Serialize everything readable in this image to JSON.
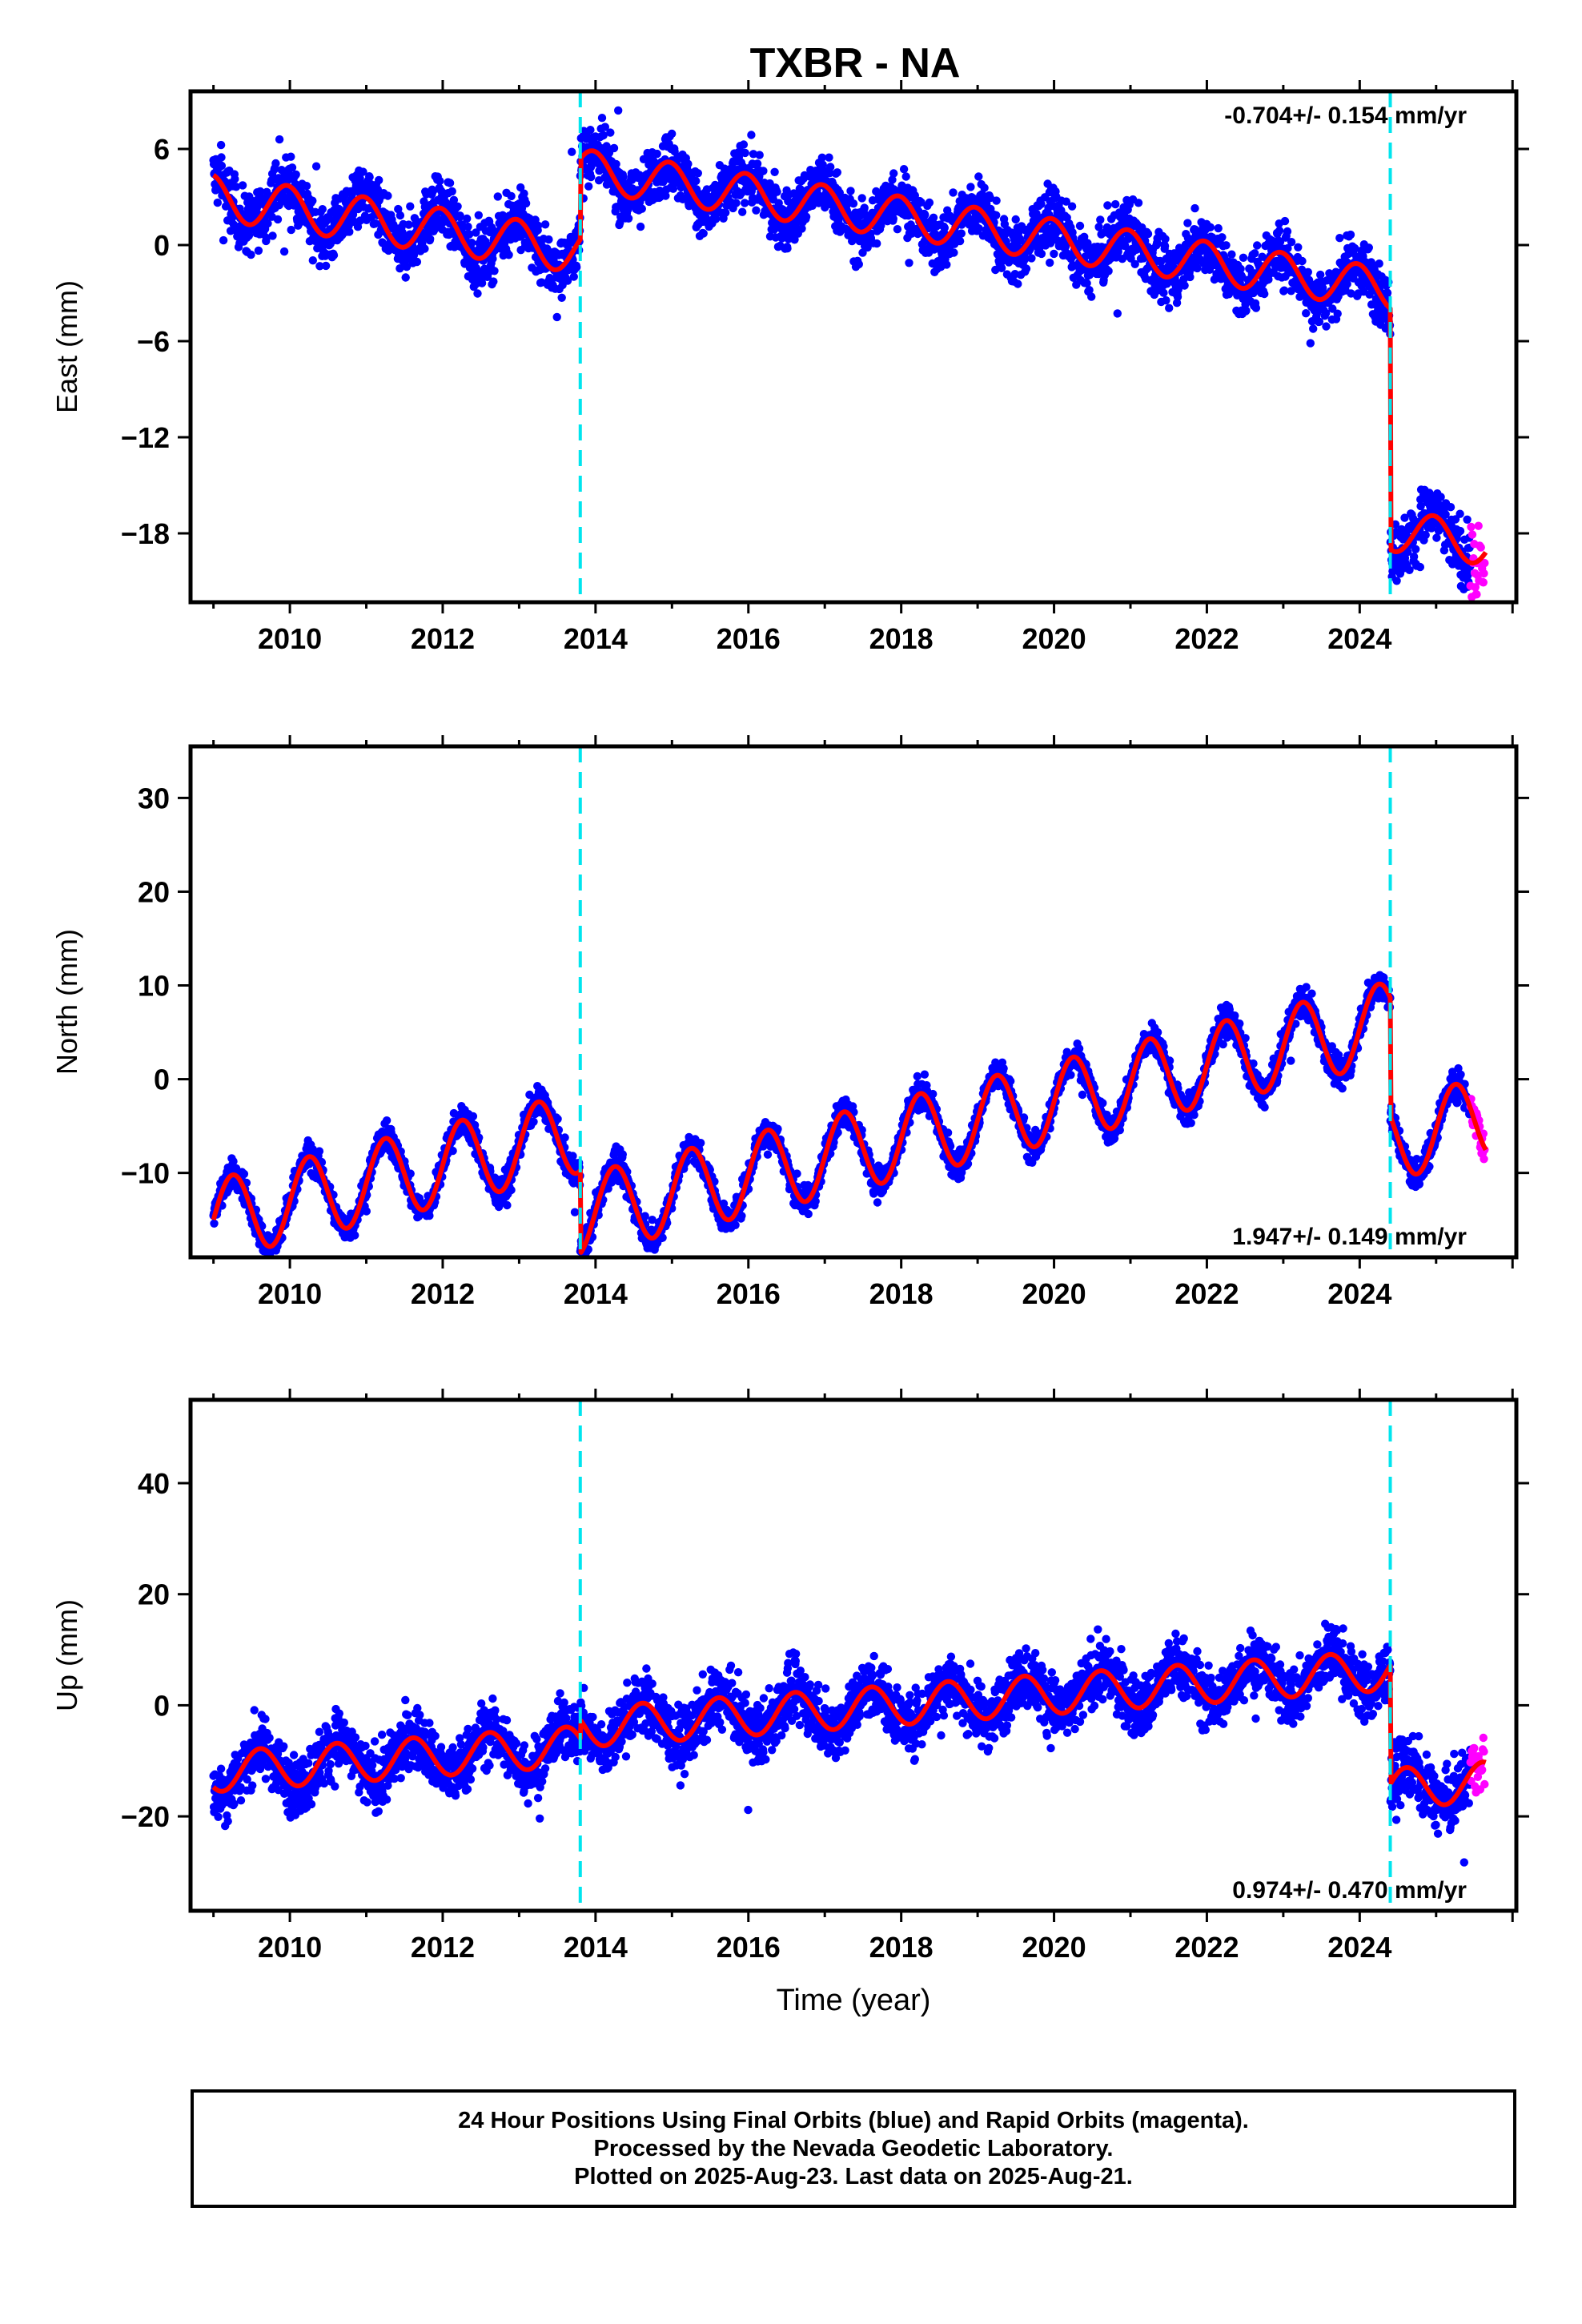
{
  "title": "TXBR - NA",
  "xlabel": "Time (year)",
  "footer": {
    "line1": "24 Hour Positions Using Final Orbits (blue) and Rapid Orbits (magenta).",
    "line2": "Processed by the Nevada Geodetic Laboratory.",
    "line3": "Plotted on 2025-Aug-23. Last data on 2025-Aug-21."
  },
  "colors": {
    "final": "#0000ff",
    "rapid": "#ff00ff",
    "model": "#ff0000",
    "event": "#00e5ee"
  },
  "chart_data": [
    {
      "type": "scatter",
      "panel": "east",
      "ylabel": "East (mm)",
      "rate_label": "-0.704+/- 0.154 mm/yr",
      "xlim": [
        2008.7,
        2026.05
      ],
      "ylim": [
        -22.3,
        9.6
      ],
      "xticks": [
        2010,
        2012,
        2014,
        2016,
        2018,
        2020,
        2022,
        2024
      ],
      "xtick_labels": [
        "2010",
        "2012",
        "2014",
        "2016",
        "2018",
        "2020",
        "2022",
        "2024"
      ],
      "yticks": [
        6,
        0,
        -6,
        -12,
        -18
      ],
      "ytick_labels": [
        "6",
        "0",
        "−6",
        "−12",
        "−18"
      ],
      "events": [
        2013.8,
        2024.4
      ],
      "model": {
        "segments": [
          {
            "start": 2009.0,
            "end": 2013.8,
            "offset": 3.0,
            "slope": -0.704,
            "amp": 1.4,
            "phase": 1.8
          },
          {
            "start": 2013.8,
            "end": 2024.4,
            "offset": 4.7,
            "slope": -0.704,
            "amp": 1.3,
            "phase": 1.8
          },
          {
            "start": 2024.4,
            "end": 2025.65,
            "offset": -17.8,
            "slope": -0.704,
            "amp": 1.3,
            "phase": 1.8
          }
        ]
      },
      "noise": 1.3,
      "rapid": {
        "start": 2025.45,
        "end": 2025.64,
        "spread": 4.5
      }
    },
    {
      "type": "scatter",
      "panel": "north",
      "ylabel": "North (mm)",
      "rate_label": "1.947+/- 0.149 mm/yr",
      "xlim": [
        2008.7,
        2026.05
      ],
      "ylim": [
        -19,
        35.5
      ],
      "xticks": [
        2010,
        2012,
        2014,
        2016,
        2018,
        2020,
        2022,
        2024
      ],
      "xtick_labels": [
        "2010",
        "2012",
        "2014",
        "2016",
        "2018",
        "2020",
        "2022",
        "2024"
      ],
      "yticks": [
        30,
        20,
        10,
        0,
        -10
      ],
      "ytick_labels": [
        "30",
        "20",
        "10",
        "0",
        "−10"
      ],
      "events": [
        2013.8,
        2024.4
      ],
      "model": {
        "segments": [
          {
            "start": 2009.0,
            "end": 2013.8,
            "offset": -15.0,
            "slope": 1.947,
            "amp": 4.3,
            "phase": 0.0
          },
          {
            "start": 2013.8,
            "end": 2024.4,
            "offset": -14.5,
            "slope": 1.947,
            "amp": 4.3,
            "phase": 0.0
          },
          {
            "start": 2024.4,
            "end": 2025.65,
            "offset": -6.5,
            "slope": 1.947,
            "amp": 4.3,
            "phase": 0.0
          }
        ]
      },
      "noise": 1.1,
      "rapid": {
        "start": 2025.45,
        "end": 2025.64,
        "spread": 3.0
      }
    },
    {
      "type": "scatter",
      "panel": "up",
      "ylabel": "Up (mm)",
      "rate_label": "0.974+/- 0.470 mm/yr",
      "xlim": [
        2008.7,
        2026.05
      ],
      "ylim": [
        -37,
        55
      ],
      "xticks": [
        2010,
        2012,
        2014,
        2016,
        2018,
        2020,
        2022,
        2024
      ],
      "xtick_labels": [
        "2010",
        "2012",
        "2014",
        "2016",
        "2018",
        "2020",
        "2022",
        "2024"
      ],
      "yticks": [
        40,
        20,
        0,
        -20
      ],
      "ytick_labels": [
        "40",
        "20",
        "0",
        "−20"
      ],
      "events": [
        2013.8,
        2024.4
      ],
      "model": {
        "segments": [
          {
            "start": 2009.0,
            "end": 2013.8,
            "offset": -12.0,
            "slope": 0.974,
            "amp": 3.6,
            "phase": 4.0
          },
          {
            "start": 2013.8,
            "end": 2024.4,
            "offset": -4.0,
            "slope": 0.974,
            "amp": 3.6,
            "phase": 4.0
          },
          {
            "start": 2024.4,
            "end": 2025.65,
            "offset": -15.0,
            "slope": 0.974,
            "amp": 3.6,
            "phase": 4.0
          }
        ]
      },
      "noise": 3.8,
      "rapid": {
        "start": 2025.45,
        "end": 2025.64,
        "spread": 10.0
      }
    }
  ]
}
